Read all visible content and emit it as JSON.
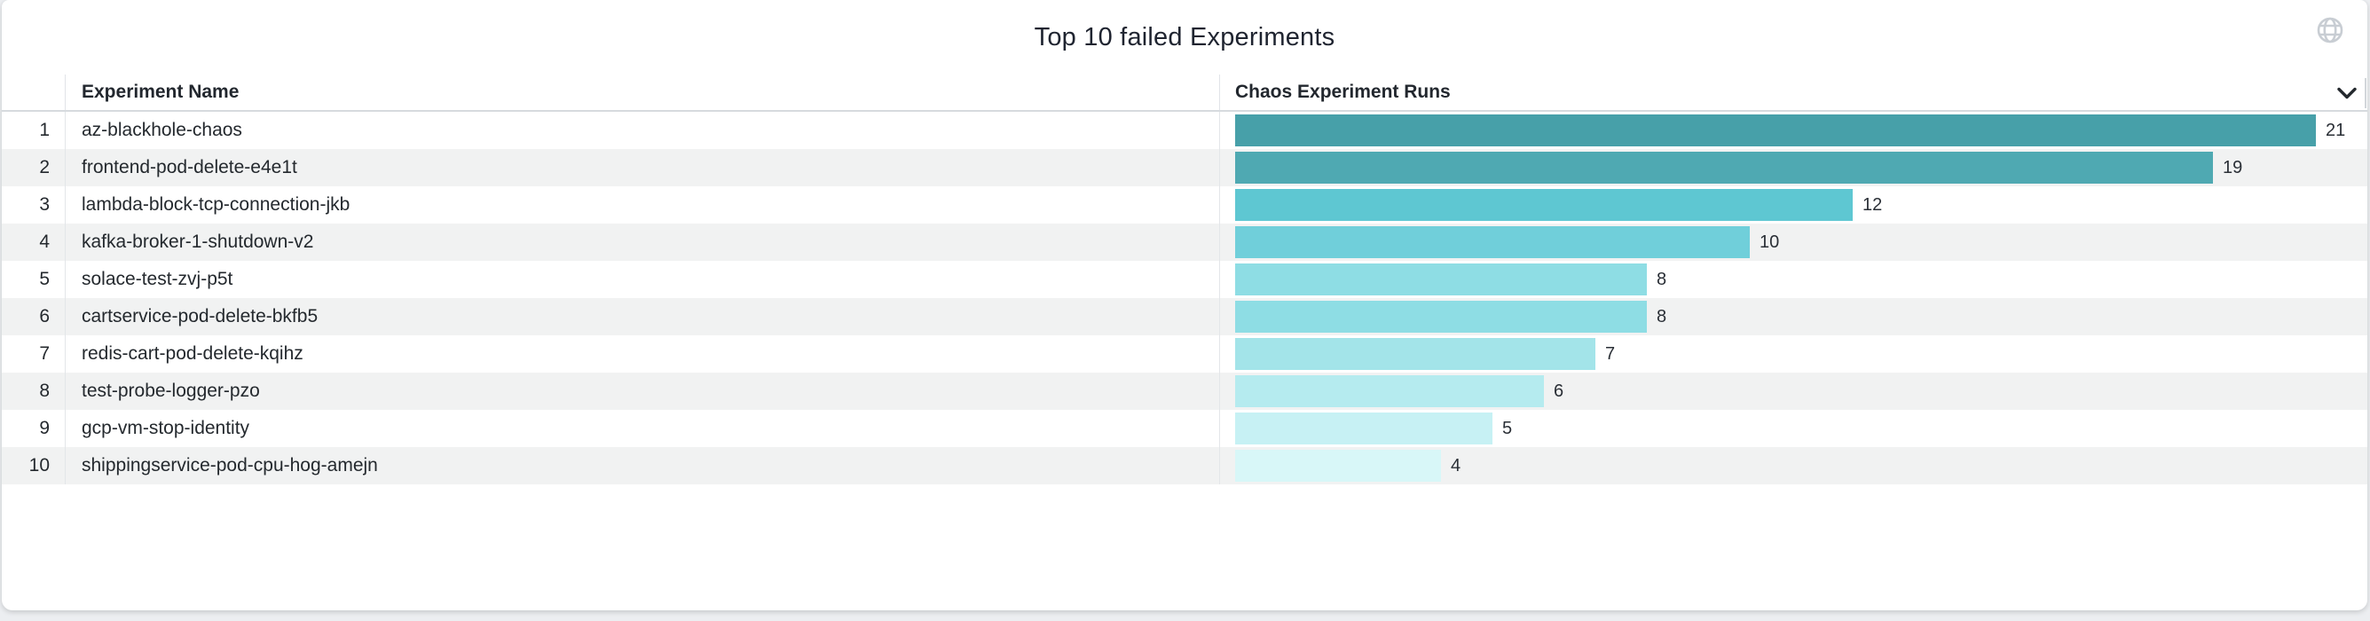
{
  "panel": {
    "title": "Top 10 failed Experiments"
  },
  "table": {
    "headers": {
      "rank": "",
      "name": "Experiment Name",
      "runs": "Chaos Experiment Runs"
    },
    "rows": [
      {
        "rank": "1",
        "name": "az-blackhole-chaos",
        "runs": "21",
        "bar_color": "#47a0a9"
      },
      {
        "rank": "2",
        "name": "frontend-pod-delete-e4e1t",
        "runs": "19",
        "bar_color": "#4fa9b2"
      },
      {
        "rank": "3",
        "name": "lambda-block-tcp-connection-jkb",
        "runs": "12",
        "bar_color": "#5ec7d2"
      },
      {
        "rank": "4",
        "name": "kafka-broker-1-shutdown-v2",
        "runs": "10",
        "bar_color": "#70cfda"
      },
      {
        "rank": "5",
        "name": "solace-test-zvj-p5t",
        "runs": "8",
        "bar_color": "#8edde4"
      },
      {
        "rank": "6",
        "name": "cartservice-pod-delete-bkfb5",
        "runs": "8",
        "bar_color": "#8edde4"
      },
      {
        "rank": "7",
        "name": "redis-cart-pod-delete-kqihz",
        "runs": "7",
        "bar_color": "#a3e4e9"
      },
      {
        "rank": "8",
        "name": "test-probe-logger-pzo",
        "runs": "6",
        "bar_color": "#b5ebef"
      },
      {
        "rank": "9",
        "name": "gcp-vm-stop-identity",
        "runs": "5",
        "bar_color": "#c7f1f4"
      },
      {
        "rank": "10",
        "name": "shippingservice-pod-cpu-hog-amejn",
        "runs": "4",
        "bar_color": "#d8f7f8"
      }
    ]
  },
  "icons": {
    "globe": "globe-icon",
    "header_chevron": "chevron-down-icon",
    "globe_color": "#c8cdd3",
    "chevron_color": "#24292e"
  },
  "chart_data": {
    "type": "bar",
    "orientation": "horizontal",
    "title": "Top 10 failed Experiments",
    "xlabel": "Chaos Experiment Runs",
    "ylabel": "Experiment Name",
    "categories": [
      "az-blackhole-chaos",
      "frontend-pod-delete-e4e1t",
      "lambda-block-tcp-connection-jkb",
      "kafka-broker-1-shutdown-v2",
      "solace-test-zvj-p5t",
      "cartservice-pod-delete-bkfb5",
      "redis-cart-pod-delete-kqihz",
      "test-probe-logger-pzo",
      "gcp-vm-stop-identity",
      "shippingservice-pod-cpu-hog-amejn"
    ],
    "values": [
      21,
      19,
      12,
      10,
      8,
      8,
      7,
      6,
      5,
      4
    ],
    "xlim": [
      0,
      21
    ],
    "grid": false,
    "legend": "none",
    "value_labels": "end-of-bar",
    "bar_colors": [
      "#47a0a9",
      "#4fa9b2",
      "#5ec7d2",
      "#70cfda",
      "#8edde4",
      "#8edde4",
      "#a3e4e9",
      "#b5ebef",
      "#c7f1f4",
      "#d8f7f8"
    ]
  }
}
